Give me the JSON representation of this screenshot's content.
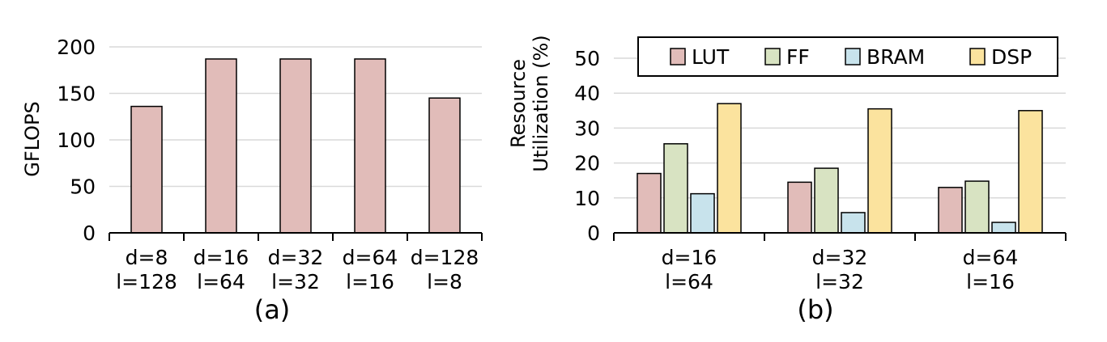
{
  "chart_data": [
    {
      "type": "bar",
      "title": "",
      "caption": "(a)",
      "xlabel": "",
      "ylabel": "GFLOPS",
      "ylim": [
        0,
        200
      ],
      "yticks": [
        0,
        50,
        100,
        150,
        200
      ],
      "grid": true,
      "categories": [
        [
          "d=8",
          "l=128"
        ],
        [
          "d=16",
          "l=64"
        ],
        [
          "d=32",
          "l=32"
        ],
        [
          "d=64",
          "l=16"
        ],
        [
          "d=128",
          "l=8"
        ]
      ],
      "series": [
        {
          "color": "#e1bcb9",
          "values": [
            136,
            187,
            187,
            187,
            145
          ]
        }
      ]
    },
    {
      "type": "bar",
      "title": "",
      "caption": "(b)",
      "xlabel": "",
      "ylabel": [
        "Resource",
        "Utilization (%)"
      ],
      "ylim": [
        0,
        50
      ],
      "yticks": [
        0,
        10,
        20,
        30,
        40,
        50
      ],
      "grid": true,
      "legend_position": "top",
      "categories": [
        [
          "d=16",
          "l=64"
        ],
        [
          "d=32",
          "l=32"
        ],
        [
          "d=64",
          "l=16"
        ]
      ],
      "series": [
        {
          "name": "LUT",
          "color": "#e1bcb9",
          "values": [
            17.0,
            14.5,
            13.0
          ]
        },
        {
          "name": "FF",
          "color": "#d8e3c2",
          "values": [
            25.5,
            18.5,
            14.8
          ]
        },
        {
          "name": "BRAM",
          "color": "#c8e3ec",
          "values": [
            11.2,
            5.8,
            3.0
          ]
        },
        {
          "name": "DSP",
          "color": "#fbe39e",
          "values": [
            37.0,
            35.5,
            35.0
          ]
        }
      ]
    }
  ]
}
